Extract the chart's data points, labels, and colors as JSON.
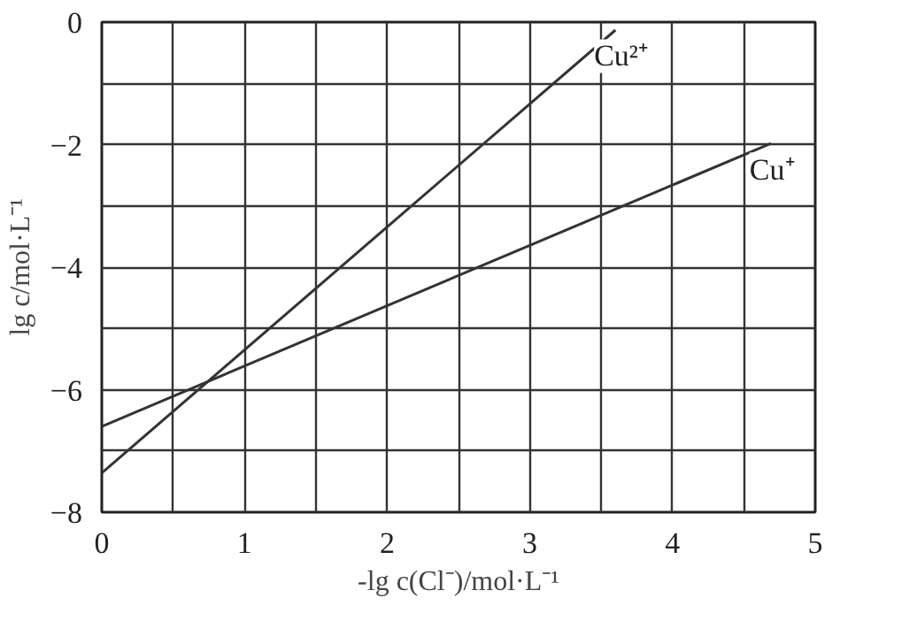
{
  "chart_data": {
    "type": "line",
    "xlabel": "-lg c(Cl⁻)/mol·L⁻¹",
    "ylabel": "lg c/mol·L⁻¹",
    "series": [
      {
        "name": "Cu²⁺",
        "color": "#333333",
        "x": [
          0,
          3.6
        ],
        "values": [
          -7.36,
          -0.13
        ]
      },
      {
        "name": "Cu⁺",
        "color": "#333333",
        "x": [
          0,
          4.69
        ],
        "values": [
          -6.6,
          -1.98
        ]
      }
    ],
    "xlim": [
      0,
      5
    ],
    "ylim": [
      -8,
      0
    ],
    "xticks": [
      0,
      {
        "value": 0.5,
        "label": null
      },
      1,
      {
        "value": 1.5,
        "label": null
      },
      2,
      {
        "value": 2.5,
        "label": null
      },
      3,
      {
        "value": 3.5,
        "label": null
      },
      4,
      {
        "value": 4.5,
        "label": null
      },
      5
    ],
    "yticks": [
      -8,
      {
        "value": -7,
        "label": null
      },
      -6,
      {
        "value": -5,
        "label": null
      },
      -4,
      {
        "value": -3,
        "label": null
      },
      -2,
      {
        "value": -1,
        "label": null
      },
      0
    ],
    "grid": true,
    "marker": "none",
    "line_style": "solid"
  }
}
